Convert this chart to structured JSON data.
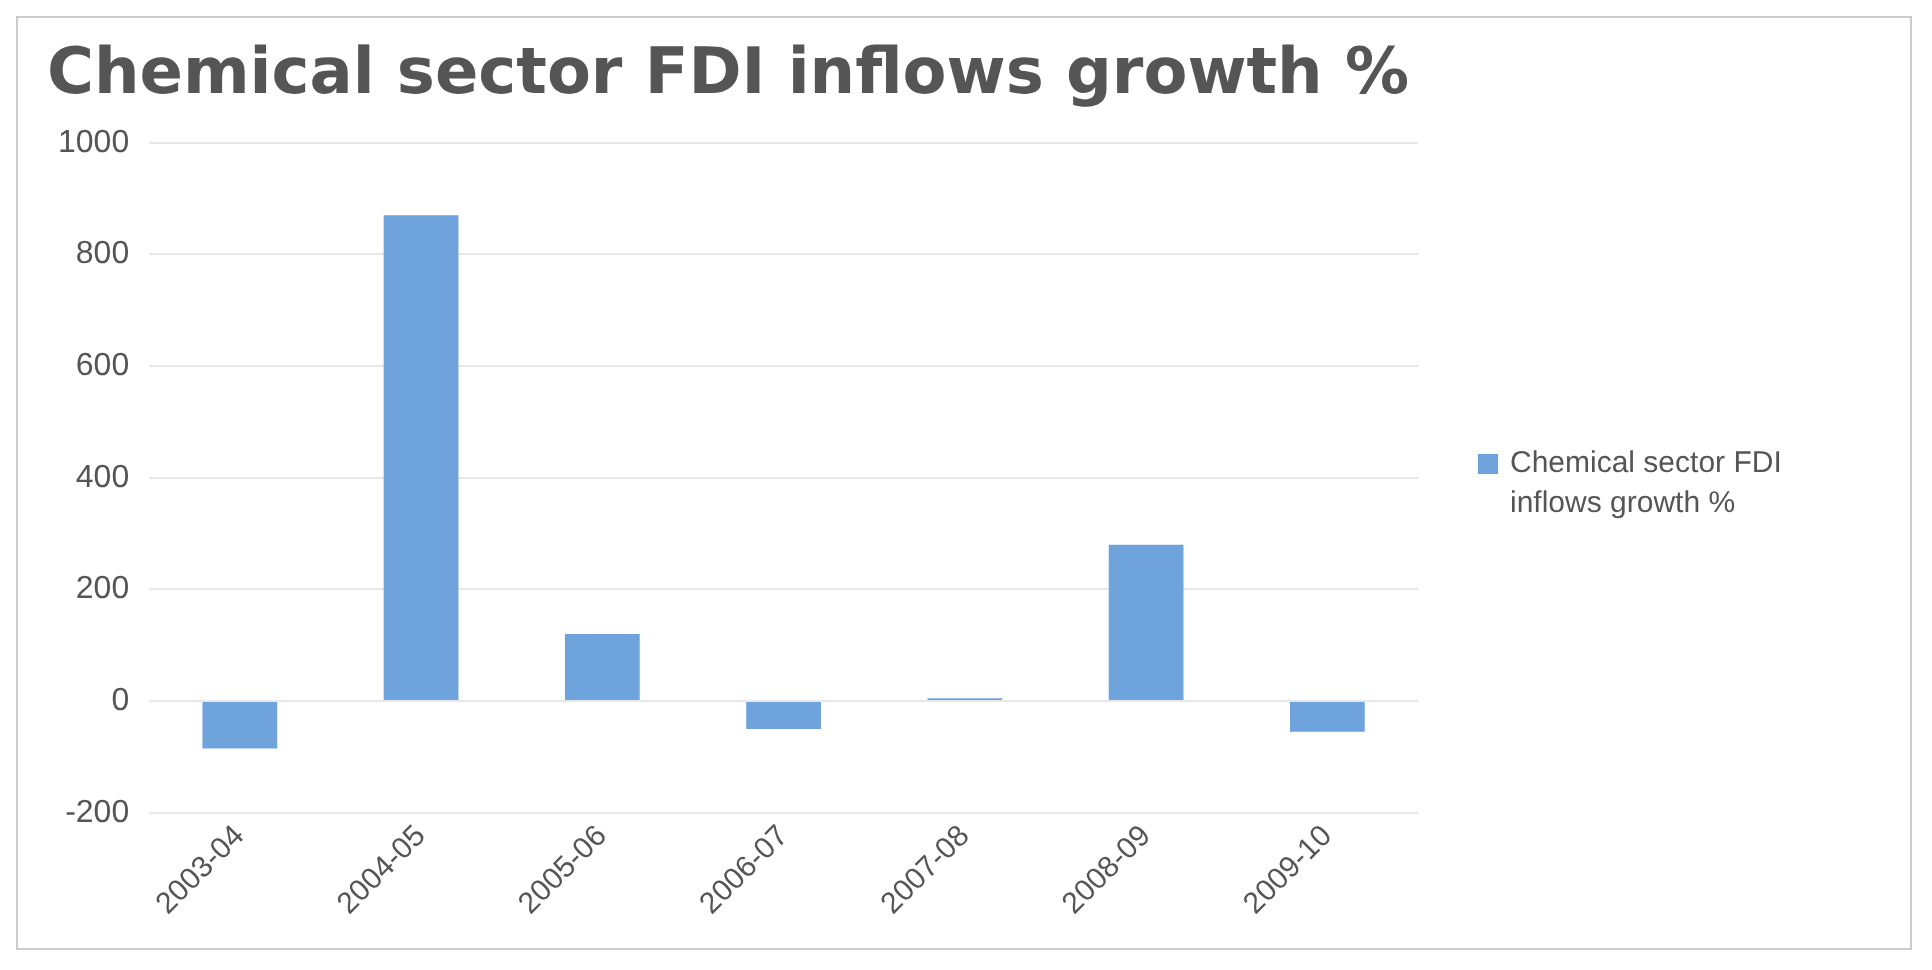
{
  "chart_data": {
    "type": "bar",
    "title": "Chemical sector FDI inflows growth %",
    "categories": [
      "2003-04",
      "2004-05",
      "2005-06",
      "2006-07",
      "2007-08",
      "2008-09",
      "2009-10"
    ],
    "series": [
      {
        "name": "Chemical sector FDI inflows growth %",
        "color": "#6fa3dc",
        "values": [
          -85,
          870,
          120,
          -50,
          5,
          280,
          -55
        ]
      }
    ],
    "ylim": [
      -200,
      1000
    ],
    "yticks": [
      -200,
      0,
      200,
      400,
      600,
      800,
      1000
    ],
    "grid": "y",
    "legend": "right"
  }
}
